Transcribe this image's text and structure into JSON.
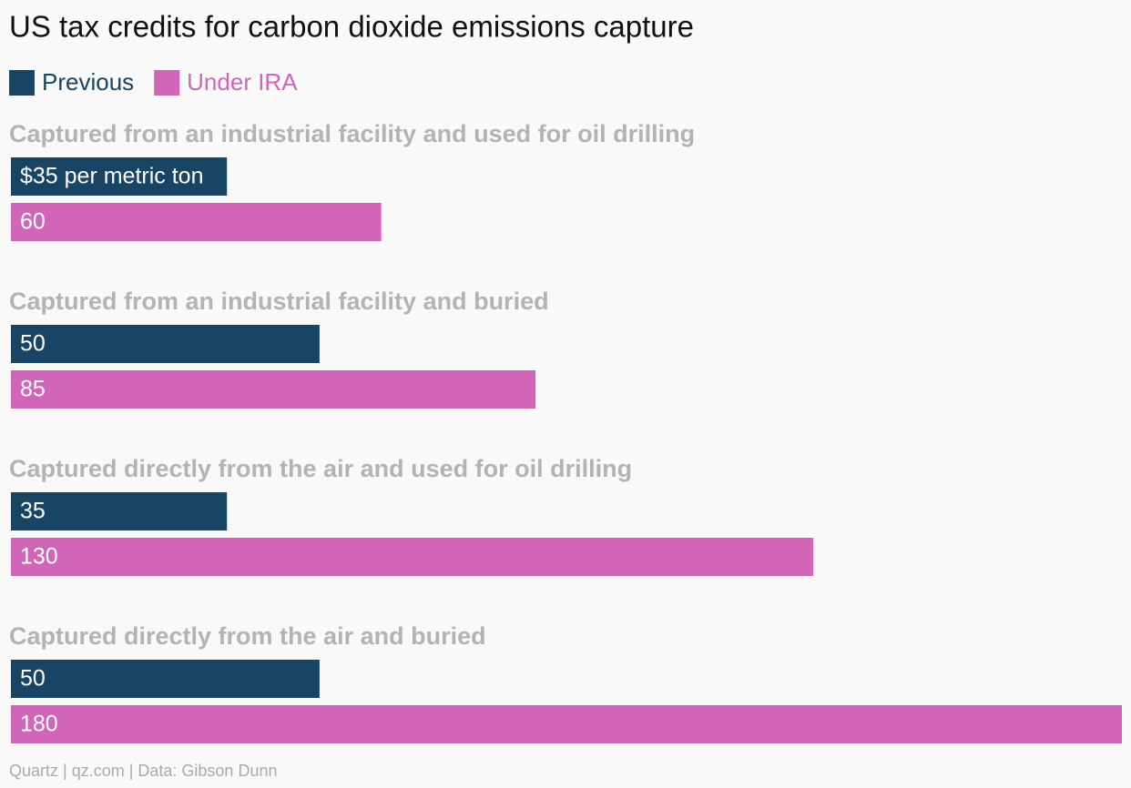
{
  "chart_data": {
    "type": "grouped-hbar",
    "title": "US tax credits for carbon dioxide emissions capture",
    "categories": [
      "Captured from an industrial facility and used for oil drilling",
      "Captured from an industrial facility and buried",
      "Captured directly from the air and used for oil drilling",
      "Captured directly from the air and buried"
    ],
    "series": [
      {
        "name": "Previous",
        "color": "#174563",
        "values": [
          35,
          50,
          35,
          50
        ],
        "value_labels": [
          "$35 per metric ton",
          "50",
          "35",
          "50"
        ]
      },
      {
        "name": "Under IRA",
        "color": "#d166b8",
        "values": [
          60,
          85,
          130,
          180
        ]
      }
    ],
    "legend": "top-left",
    "source": "Quartz | qz.com | Data: Gibson Dunn"
  }
}
